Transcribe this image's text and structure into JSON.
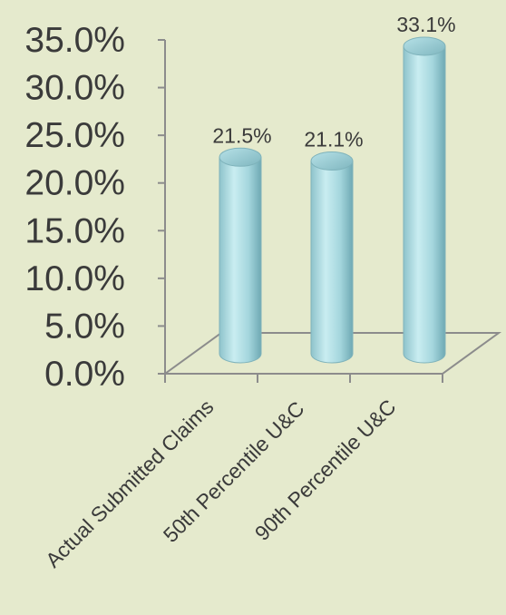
{
  "chart_data": {
    "type": "bar",
    "style": "3d-cylinder",
    "categories": [
      "Actual Submitted Claims",
      "50th Percentile U&C",
      "90th Percentile U&C"
    ],
    "values": [
      21.5,
      21.1,
      33.1
    ],
    "data_labels": [
      "21.5%",
      "21.1%",
      "33.1%"
    ],
    "y_ticks": [
      "0.0%",
      "5.0%",
      "10.0%",
      "15.0%",
      "20.0%",
      "25.0%",
      "30.0%",
      "35.0%"
    ],
    "ylim": [
      0,
      35
    ],
    "grid": false,
    "legend": "none",
    "colors": {
      "bar": "#a9d9df",
      "bar_shade": "#6fa9b3",
      "axis": "#8c8c8c",
      "text": "#3a3a3a",
      "background": "#e5eacd"
    }
  }
}
